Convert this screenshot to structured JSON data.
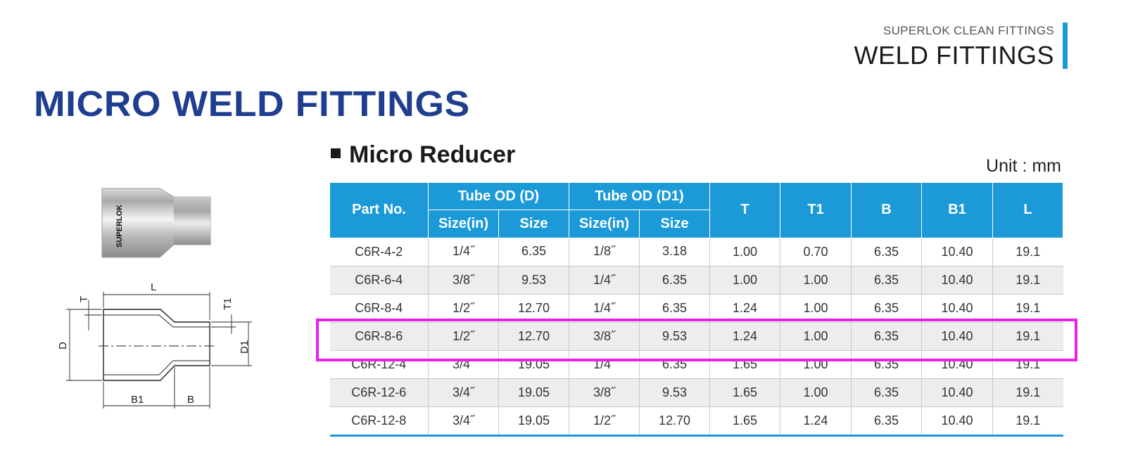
{
  "header": {
    "brand_line": "SUPERLOK CLEAN FITTINGS",
    "category": "WELD FITTINGS",
    "accent_color": "#1a9ad6"
  },
  "page_title": "MICRO WELD FITTINGS",
  "section": {
    "title": "Micro Reducer",
    "unit": "Unit : mm"
  },
  "product_image": {
    "engraving": "SUPERLOK"
  },
  "drawing_labels": {
    "L": "L",
    "T": "T",
    "T1": "T1",
    "D": "D",
    "D1": "D1",
    "B1": "B1",
    "B": "B"
  },
  "table": {
    "header_color": "#1c9ad8",
    "headers": {
      "part_no": "Part No.",
      "tube_od_d": "Tube OD (D)",
      "tube_od_d1": "Tube OD (D1)",
      "size_in": "Size(in)",
      "size": "Size",
      "t": "T",
      "t1": "T1",
      "b": "B",
      "b1": "B1",
      "l": "L"
    },
    "rows": [
      [
        "C6R-4-2",
        "1/4˝",
        "6.35",
        "1/8˝",
        "3.18",
        "1.00",
        "0.70",
        "6.35",
        "10.40",
        "19.1"
      ],
      [
        "C6R-6-4",
        "3/8˝",
        "9.53",
        "1/4˝",
        "6.35",
        "1.00",
        "1.00",
        "6.35",
        "10.40",
        "19.1"
      ],
      [
        "C6R-8-4",
        "1/2˝",
        "12.70",
        "1/4˝",
        "6.35",
        "1.24",
        "1.00",
        "6.35",
        "10.40",
        "19.1"
      ],
      [
        "C6R-8-6",
        "1/2˝",
        "12.70",
        "3/8˝",
        "9.53",
        "1.24",
        "1.00",
        "6.35",
        "10.40",
        "19.1"
      ],
      [
        "C6R-12-4",
        "3/4˝",
        "19.05",
        "1/4˝",
        "6.35",
        "1.65",
        "1.00",
        "6.35",
        "10.40",
        "19.1"
      ],
      [
        "C6R-12-6",
        "3/4˝",
        "19.05",
        "3/8˝",
        "9.53",
        "1.65",
        "1.00",
        "6.35",
        "10.40",
        "19.1"
      ],
      [
        "C6R-12-8",
        "3/4˝",
        "19.05",
        "1/2˝",
        "12.70",
        "1.65",
        "1.24",
        "6.35",
        "10.40",
        "19.1"
      ]
    ],
    "highlight_color": "#e622e6"
  }
}
